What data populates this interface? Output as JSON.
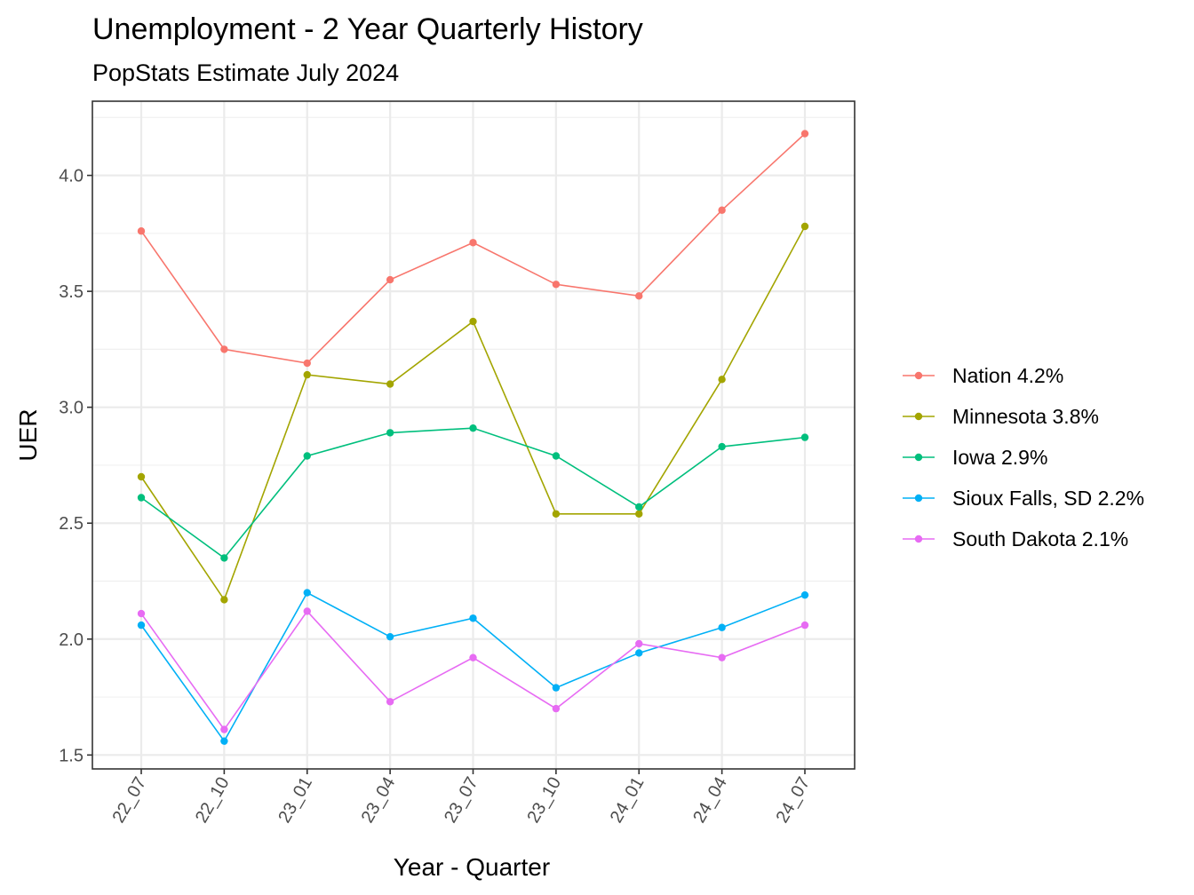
{
  "chart_data": {
    "type": "line",
    "title": "Unemployment - 2 Year Quarterly History",
    "subtitle": "PopStats Estimate July 2024",
    "xlabel": "Year - Quarter",
    "ylabel": "UER",
    "categories": [
      "22_07",
      "22_10",
      "23_01",
      "23_04",
      "23_07",
      "23_10",
      "24_01",
      "24_04",
      "24_07"
    ],
    "ylim": [
      1.44,
      4.32
    ],
    "yticks": [
      1.5,
      2.0,
      2.5,
      3.0,
      3.5,
      4.0
    ],
    "ytick_labels": [
      "1.5",
      "2.0",
      "2.5",
      "3.0",
      "3.5",
      "4.0"
    ],
    "grid": true,
    "legend_position": "right",
    "series": [
      {
        "name": "Nation 4.2%",
        "color": "#F8766D",
        "values": [
          3.76,
          3.25,
          3.19,
          3.55,
          3.71,
          3.53,
          3.48,
          3.85,
          4.18
        ]
      },
      {
        "name": "Minnesota 3.8%",
        "color": "#A3A500",
        "values": [
          2.7,
          2.17,
          3.14,
          3.1,
          3.37,
          2.54,
          2.54,
          3.12,
          3.78
        ]
      },
      {
        "name": "Iowa 2.9%",
        "color": "#00BF7D",
        "values": [
          2.61,
          2.35,
          2.79,
          2.89,
          2.91,
          2.79,
          2.57,
          2.83,
          2.87
        ]
      },
      {
        "name": "Sioux Falls, SD 2.2%",
        "color": "#00B0F6",
        "values": [
          2.06,
          1.56,
          2.2,
          2.01,
          2.09,
          1.79,
          1.94,
          2.05,
          2.19
        ]
      },
      {
        "name": "South Dakota 2.1%",
        "color": "#E76BF3",
        "values": [
          2.11,
          1.61,
          2.12,
          1.73,
          1.92,
          1.7,
          1.98,
          1.92,
          2.06
        ]
      }
    ]
  }
}
